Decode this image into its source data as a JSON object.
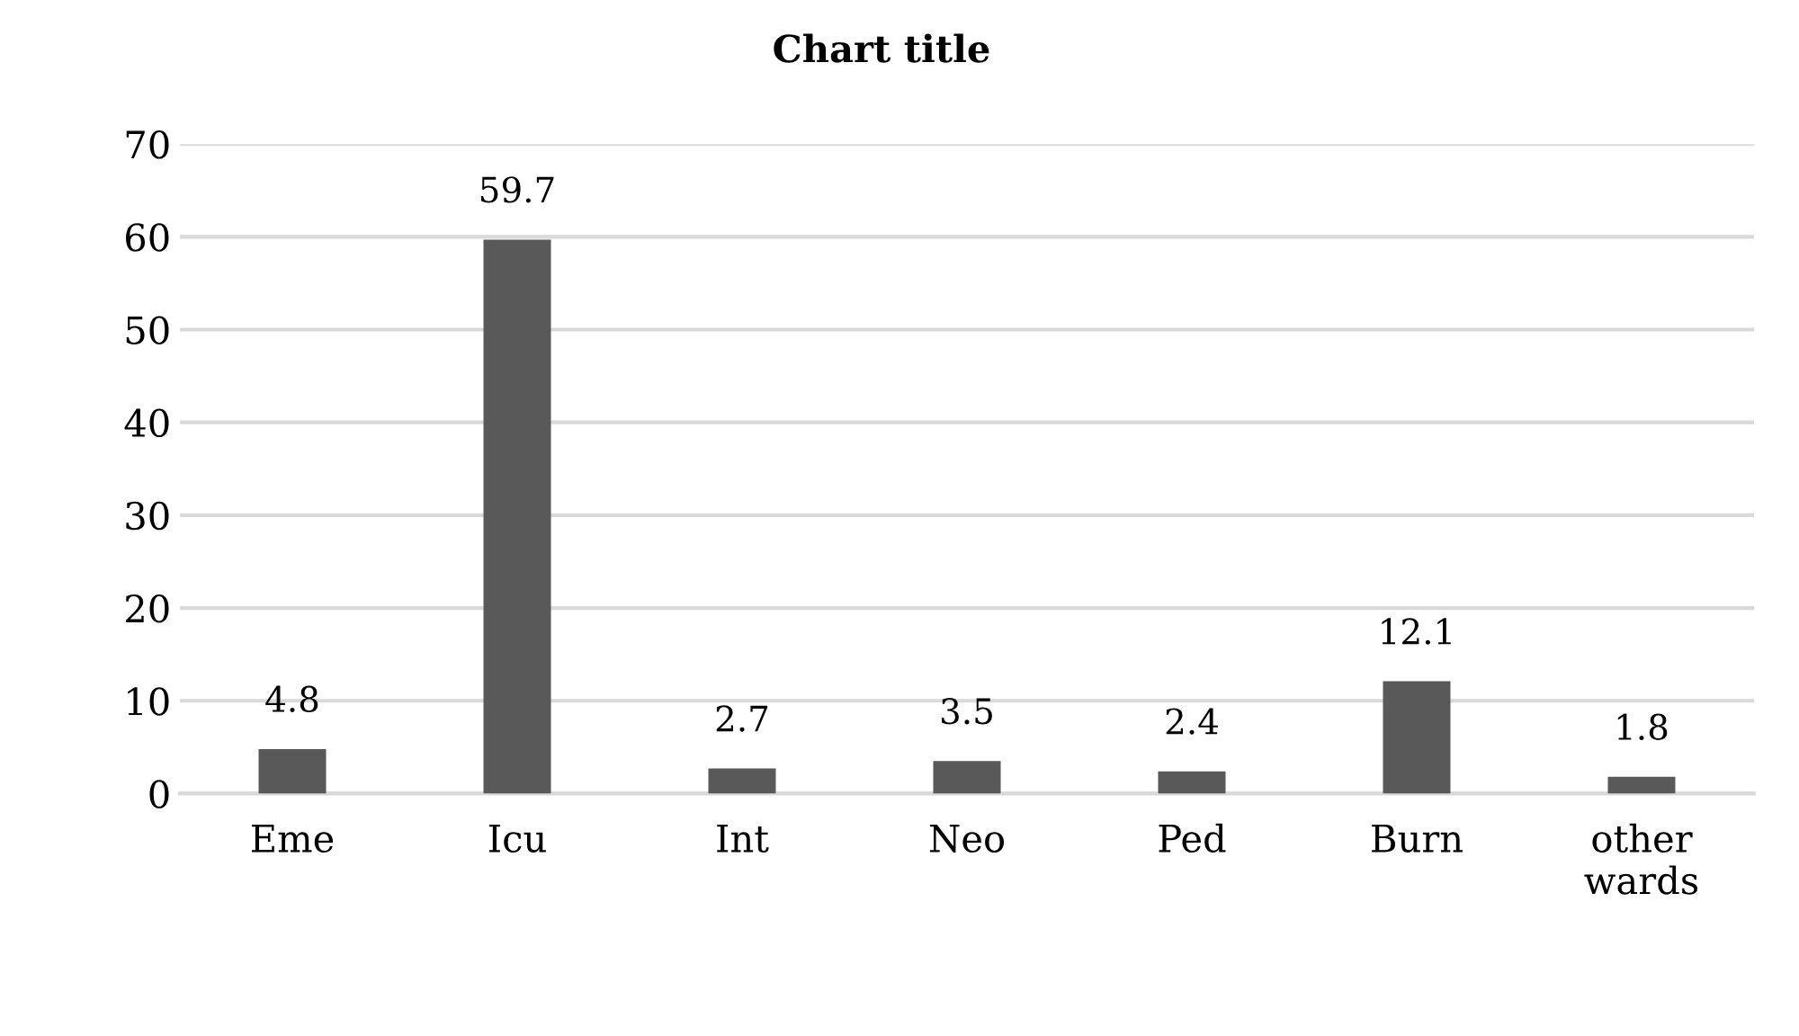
{
  "chart_data": {
    "type": "bar",
    "title": "Chart title",
    "categories": [
      "Eme",
      "Icu",
      "Int",
      "Neo",
      "Ped",
      "Burn",
      "other\nwards"
    ],
    "values": [
      4.8,
      59.7,
      2.7,
      3.5,
      2.4,
      12.1,
      1.8
    ],
    "color": "#595959",
    "ylim": [
      0,
      70
    ],
    "yticks": [
      0,
      10,
      20,
      30,
      40,
      50,
      60,
      70
    ],
    "grid": "y",
    "data_labels": true
  }
}
